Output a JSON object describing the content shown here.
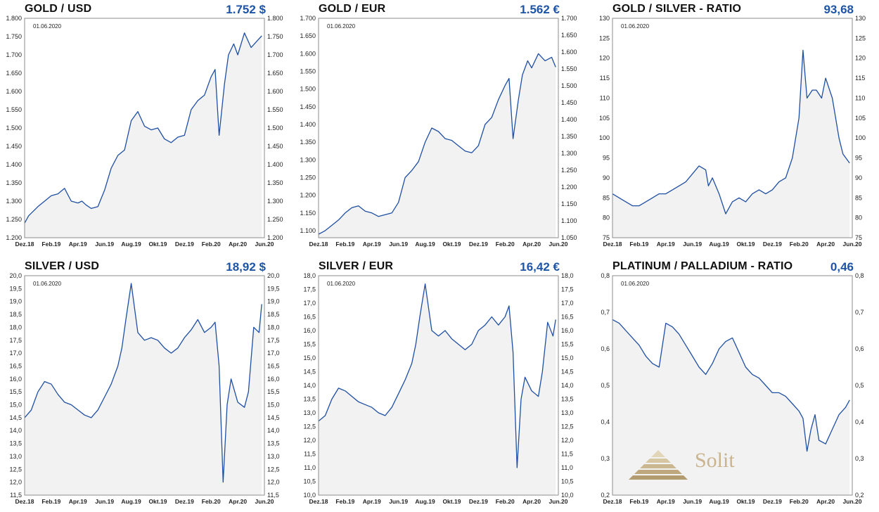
{
  "colors": {
    "line": "#1f4fa3",
    "fill": "#f2f2f2",
    "value": "#1d54a6",
    "frame": "#8c8c8c"
  },
  "panels": [
    {
      "title": "GOLD / USD",
      "value": "1.752 $",
      "date": "01.06.2020"
    },
    {
      "title": "GOLD / EUR",
      "value": "1.562 €",
      "date": "01.06.2020"
    },
    {
      "title": "GOLD / SILVER - RATIO",
      "value": "93,68",
      "date": "01.06.2020"
    },
    {
      "title": "SILVER / USD",
      "value": "18,92 $",
      "date": "01.06.2020"
    },
    {
      "title": "SILVER / EUR",
      "value": "16,42 €",
      "date": "01.06.2020"
    },
    {
      "title": "PLATINUM / PALLADIUM - RATIO",
      "value": "0,46",
      "date": "01.06.2020"
    }
  ],
  "logo": {
    "text": "Solit"
  },
  "chart_data": [
    {
      "type": "area",
      "title": "GOLD / USD",
      "x_tick_labels": [
        "Dez.18",
        "Feb.19",
        "Apr.19",
        "Jun.19",
        "Aug.19",
        "Okt.19",
        "Dez.19",
        "Feb.20",
        "Apr.20",
        "Jun.20"
      ],
      "x": [
        0,
        0.3,
        1,
        1.5,
        2,
        2.5,
        3,
        3.5,
        4,
        4.3,
        4.6,
        5,
        5.5,
        6,
        6.5,
        7,
        7.5,
        8,
        8.5,
        9,
        9.5,
        10,
        10.5,
        11,
        11.5,
        12,
        12.5,
        13,
        13.5,
        14,
        14.3,
        14.6,
        15,
        15.3,
        15.7,
        16,
        16.5,
        17,
        17.5,
        17.8
      ],
      "y": [
        1240,
        1260,
        1285,
        1300,
        1315,
        1320,
        1335,
        1300,
        1295,
        1300,
        1290,
        1280,
        1285,
        1330,
        1390,
        1425,
        1440,
        1520,
        1545,
        1505,
        1495,
        1500,
        1470,
        1460,
        1475,
        1480,
        1550,
        1575,
        1590,
        1640,
        1660,
        1480,
        1620,
        1700,
        1730,
        1700,
        1760,
        1720,
        1740,
        1752
      ],
      "y_left_labels": [
        "1.200",
        "1.250",
        "1.300",
        "1.350",
        "1.400",
        "1.450",
        "1.500",
        "1.550",
        "1.600",
        "1.650",
        "1.700",
        "1.750",
        "1.800"
      ],
      "y_right_labels": [
        "1.200",
        "1.250",
        "1.300",
        "1.350",
        "1.400",
        "1.450",
        "1.500",
        "1.550",
        "1.600",
        "1.650",
        "1.700",
        "1.750",
        "1.800"
      ],
      "left_ylim": [
        1200,
        1800
      ],
      "right_ylim": [
        1200,
        1800
      ],
      "grid": true
    },
    {
      "type": "area",
      "title": "GOLD / EUR",
      "x_tick_labels": [
        "Dez.18",
        "Feb.19",
        "Apr.19",
        "Jun.19",
        "Aug.19",
        "Okt.19",
        "Dez.19",
        "Feb.20",
        "Apr.20",
        "Jun.20"
      ],
      "x": [
        0,
        0.5,
        1,
        1.5,
        2,
        2.5,
        3,
        3.5,
        4,
        4.5,
        5,
        5.5,
        6,
        6.5,
        7,
        7.5,
        8,
        8.5,
        9,
        9.5,
        10,
        10.5,
        11,
        11.5,
        12,
        12.5,
        13,
        13.5,
        14,
        14.3,
        14.6,
        15,
        15.3,
        15.7,
        16,
        16.5,
        17,
        17.5,
        17.8
      ],
      "y": [
        1090,
        1100,
        1115,
        1130,
        1150,
        1165,
        1170,
        1155,
        1150,
        1140,
        1145,
        1150,
        1180,
        1250,
        1270,
        1295,
        1350,
        1390,
        1380,
        1360,
        1355,
        1340,
        1325,
        1320,
        1340,
        1400,
        1420,
        1470,
        1510,
        1530,
        1360,
        1470,
        1540,
        1580,
        1560,
        1600,
        1580,
        1590,
        1562
      ],
      "y_left_labels": [
        "1.100",
        "1.150",
        "1.200",
        "1.250",
        "1.300",
        "1.350",
        "1.400",
        "1.450",
        "1.500",
        "1.550",
        "1.600",
        "1.650",
        "1.700"
      ],
      "y_right_labels": [
        "1.050",
        "1.100",
        "1.150",
        "1.200",
        "1.250",
        "1.300",
        "1.350",
        "1.400",
        "1.450",
        "1.500",
        "1.550",
        "1.600",
        "1.650",
        "1.700"
      ],
      "left_ylim": [
        1080,
        1700
      ],
      "right_ylim": [
        1050,
        1700
      ],
      "grid": true
    },
    {
      "type": "area",
      "title": "GOLD / SILVER - RATIO",
      "x_tick_labels": [
        "Dez.18",
        "Feb.19",
        "Apr.19",
        "Jun.19",
        "Aug.19",
        "Okt.19",
        "Dez.19",
        "Feb.20",
        "Apr.20",
        "Jun.20"
      ],
      "x": [
        0,
        0.5,
        1,
        1.5,
        2,
        2.5,
        3,
        3.5,
        4,
        4.5,
        5,
        5.5,
        6,
        6.5,
        7,
        7.2,
        7.5,
        8,
        8.5,
        9,
        9.5,
        10,
        10.5,
        11,
        11.5,
        12,
        12.5,
        13,
        13.5,
        14,
        14.3,
        14.6,
        15,
        15.3,
        15.7,
        16,
        16.5,
        17,
        17.3,
        17.8
      ],
      "y": [
        86,
        85,
        84,
        83,
        83,
        84,
        85,
        86,
        86,
        87,
        88,
        89,
        91,
        93,
        92,
        88,
        90,
        86,
        81,
        84,
        85,
        84,
        86,
        87,
        86,
        87,
        89,
        90,
        95,
        105,
        122,
        110,
        112,
        112,
        110,
        115,
        110,
        100,
        96,
        93.7
      ],
      "y_left_labels": [
        "75",
        "80",
        "85",
        "90",
        "95",
        "100",
        "105",
        "110",
        "115",
        "120",
        "125",
        "130"
      ],
      "y_right_labels": [
        "75",
        "80",
        "85",
        "90",
        "95",
        "100",
        "105",
        "110",
        "115",
        "120",
        "125",
        "130"
      ],
      "left_ylim": [
        75,
        130
      ],
      "right_ylim": [
        75,
        130
      ],
      "grid": true
    },
    {
      "type": "area",
      "title": "SILVER / USD",
      "x_tick_labels": [
        "Dez.18",
        "Feb.19",
        "Apr.19",
        "Jun.19",
        "Aug.19",
        "Okt.19",
        "Dez.19",
        "Feb.20",
        "Apr.20",
        "Jun.20"
      ],
      "x": [
        0,
        0.5,
        1,
        1.5,
        2,
        2.5,
        3,
        3.5,
        4,
        4.5,
        5,
        5.5,
        6,
        6.5,
        7,
        7.3,
        7.6,
        8,
        8.5,
        9,
        9.5,
        10,
        10.5,
        11,
        11.5,
        12,
        12.5,
        13,
        13.5,
        14,
        14.3,
        14.6,
        14.9,
        15.2,
        15.5,
        16,
        16.5,
        16.8,
        17.2,
        17.6,
        17.8
      ],
      "y": [
        14.5,
        14.8,
        15.5,
        15.9,
        15.8,
        15.4,
        15.1,
        15.0,
        14.8,
        14.6,
        14.5,
        14.8,
        15.3,
        15.8,
        16.5,
        17.2,
        18.3,
        19.7,
        17.8,
        17.5,
        17.6,
        17.5,
        17.2,
        17.0,
        17.2,
        17.6,
        17.9,
        18.3,
        17.8,
        18.0,
        18.2,
        16.5,
        12.0,
        15.0,
        16.0,
        15.1,
        14.9,
        15.5,
        18.0,
        17.8,
        18.9
      ],
      "y_left_labels": [
        "11,5",
        "12,0",
        "12,5",
        "13,0",
        "13,5",
        "14,0",
        "14,5",
        "15,0",
        "15,5",
        "16,0",
        "16,5",
        "17,0",
        "17,5",
        "18,0",
        "18,5",
        "19,0",
        "19,5",
        "20,0"
      ],
      "y_right_labels": [
        "11,5",
        "12,0",
        "12,5",
        "13,0",
        "13,5",
        "14,0",
        "14,5",
        "15,0",
        "15,5",
        "16,0",
        "16,5",
        "17,0",
        "17,5",
        "18,0",
        "18,5",
        "19,0",
        "19,5",
        "20,0"
      ],
      "left_ylim": [
        11.5,
        20.0
      ],
      "right_ylim": [
        11.5,
        20.0
      ],
      "grid": true
    },
    {
      "type": "area",
      "title": "SILVER / EUR",
      "x_tick_labels": [
        "Dez.18",
        "Feb.19",
        "Apr.19",
        "Jun.19",
        "Aug.19",
        "Okt.19",
        "Dez.19",
        "Feb.20",
        "Apr.20",
        "Jun.20"
      ],
      "x": [
        0,
        0.5,
        1,
        1.5,
        2,
        2.5,
        3,
        3.5,
        4,
        4.5,
        5,
        5.5,
        6,
        6.5,
        7,
        7.3,
        7.6,
        8,
        8.5,
        9,
        9.5,
        10,
        10.5,
        11,
        11.5,
        12,
        12.5,
        13,
        13.5,
        14,
        14.3,
        14.6,
        14.9,
        15.2,
        15.5,
        16,
        16.5,
        16.8,
        17.2,
        17.6,
        17.8
      ],
      "y": [
        12.7,
        12.9,
        13.5,
        13.9,
        13.8,
        13.6,
        13.4,
        13.3,
        13.2,
        13.0,
        12.9,
        13.2,
        13.7,
        14.2,
        14.8,
        15.5,
        16.5,
        17.7,
        16.0,
        15.8,
        16.0,
        15.7,
        15.5,
        15.3,
        15.5,
        16.0,
        16.2,
        16.5,
        16.2,
        16.5,
        16.9,
        15.2,
        11.0,
        13.5,
        14.3,
        13.8,
        13.6,
        14.5,
        16.3,
        15.8,
        16.4
      ],
      "y_left_labels": [
        "10,0",
        "10,5",
        "11,0",
        "11,5",
        "12,0",
        "12,5",
        "13,0",
        "13,5",
        "14,0",
        "14,5",
        "15,0",
        "15,5",
        "16,0",
        "16,5",
        "17,0",
        "17,5",
        "18,0"
      ],
      "y_right_labels": [
        "10,0",
        "10,5",
        "11,0",
        "11,5",
        "12,0",
        "12,5",
        "13,0",
        "13,5",
        "14,0",
        "14,5",
        "15,0",
        "15,5",
        "16,0",
        "16,5",
        "17,0",
        "17,5",
        "18,0"
      ],
      "left_ylim": [
        10.0,
        18.0
      ],
      "right_ylim": [
        10.0,
        18.0
      ],
      "grid": true
    },
    {
      "type": "area",
      "title": "PLATINUM / PALLADIUM - RATIO",
      "x_tick_labels": [
        "Dez.18",
        "Feb.19",
        "Apr.19",
        "Jun.19",
        "Aug.19",
        "Okt.19",
        "Dez.19",
        "Feb.20",
        "Apr.20",
        "Jun.20"
      ],
      "x": [
        0,
        0.5,
        1,
        1.5,
        2,
        2.5,
        3,
        3.5,
        4,
        4.5,
        5,
        5.5,
        6,
        6.5,
        7,
        7.5,
        8,
        8.5,
        9,
        9.5,
        10,
        10.5,
        11,
        11.5,
        12,
        12.5,
        13,
        13.5,
        14,
        14.3,
        14.6,
        14.9,
        15.2,
        15.5,
        16,
        16.5,
        17,
        17.5,
        17.8
      ],
      "y": [
        0.68,
        0.67,
        0.65,
        0.63,
        0.61,
        0.58,
        0.56,
        0.55,
        0.67,
        0.66,
        0.64,
        0.61,
        0.58,
        0.55,
        0.53,
        0.56,
        0.6,
        0.62,
        0.63,
        0.59,
        0.55,
        0.53,
        0.52,
        0.5,
        0.48,
        0.48,
        0.47,
        0.45,
        0.43,
        0.41,
        0.32,
        0.38,
        0.42,
        0.35,
        0.34,
        0.38,
        0.42,
        0.44,
        0.46
      ],
      "y_left_labels": [
        "0,2",
        "0,3",
        "0,4",
        "0,5",
        "0,6",
        "0,7",
        "0,8"
      ],
      "y_right_labels": [
        "0,2",
        "0,3",
        "0,4",
        "0,5",
        "0,6",
        "0,7",
        "0,8"
      ],
      "left_ylim": [
        0.2,
        0.8
      ],
      "right_ylim": [
        0.2,
        0.8
      ],
      "grid": true
    }
  ]
}
